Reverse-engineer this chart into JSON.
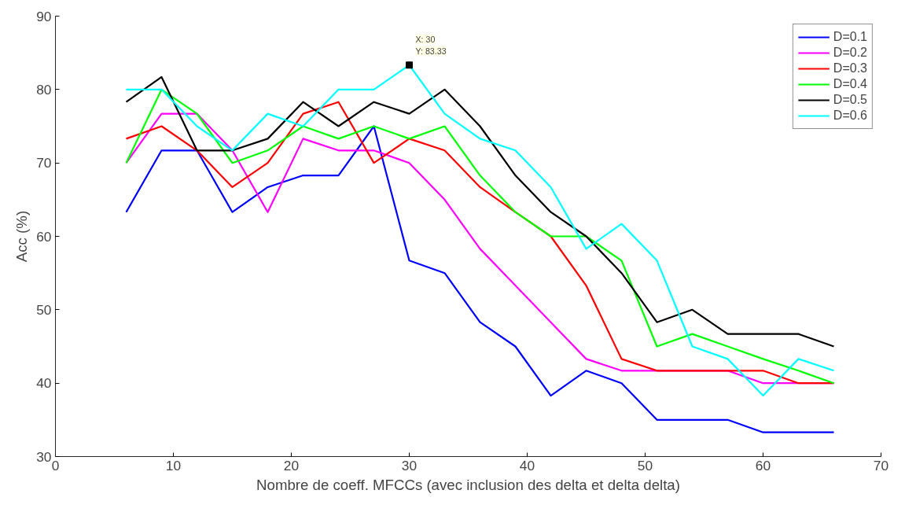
{
  "chart_data": {
    "type": "line",
    "xlabel": "Nombre de coeff. MFCCs (avec inclusion des delta et delta delta)",
    "ylabel": "Acc (%)",
    "x": [
      6,
      9,
      12,
      15,
      18,
      21,
      24,
      27,
      30,
      33,
      36,
      39,
      42,
      45,
      48,
      51,
      54,
      57,
      60,
      63,
      66
    ],
    "series": [
      {
        "name": "D=0.1",
        "color": "#0000ff",
        "values": [
          63.3,
          71.7,
          71.7,
          63.3,
          66.7,
          68.3,
          68.3,
          75,
          56.7,
          55,
          48.3,
          45,
          38.3,
          41.7,
          40,
          35,
          35,
          35,
          33.3,
          33.3,
          33.3
        ]
      },
      {
        "name": "D=0.2",
        "color": "#ff00ff",
        "values": [
          70,
          76.7,
          76.7,
          71.7,
          63.3,
          73.3,
          71.7,
          71.7,
          70,
          65,
          58.3,
          53.3,
          48.3,
          43.3,
          41.7,
          41.7,
          41.7,
          41.7,
          40,
          40,
          40
        ]
      },
      {
        "name": "D=0.3",
        "color": "#ff0000",
        "values": [
          73.3,
          75,
          71.7,
          66.7,
          70,
          76.7,
          78.3,
          70,
          73.3,
          71.7,
          66.7,
          63.3,
          60,
          53.3,
          43.3,
          41.7,
          41.7,
          41.7,
          41.7,
          40,
          40
        ]
      },
      {
        "name": "D=0.4",
        "color": "#00ff00",
        "values": [
          70,
          80,
          76.7,
          70,
          71.7,
          75,
          73.3,
          75,
          73.3,
          75,
          68.3,
          63.3,
          60,
          60,
          56.7,
          45,
          46.7,
          45,
          43.3,
          41.7,
          40
        ]
      },
      {
        "name": "D=0.5",
        "color": "#000000",
        "values": [
          78.3,
          81.7,
          71.7,
          71.7,
          73.3,
          78.3,
          75,
          78.3,
          76.7,
          80,
          75,
          68.3,
          63.3,
          60,
          55,
          48.3,
          50,
          46.7,
          46.7,
          46.7,
          45
        ]
      },
      {
        "name": "D=0.6",
        "color": "#00ffff",
        "values": [
          80,
          80,
          75,
          71.7,
          76.7,
          75,
          80,
          80,
          83.33,
          76.7,
          73.3,
          71.7,
          66.7,
          58.3,
          61.7,
          56.7,
          45,
          43.3,
          38.3,
          43.3,
          41.7
        ]
      }
    ],
    "annotations": [
      {
        "text": "X: 30\nY: 83.33",
        "x": 30,
        "y": 83.33
      }
    ],
    "xlim": [
      0,
      70
    ],
    "xticks": [
      0,
      10,
      20,
      30,
      40,
      50,
      60,
      70
    ],
    "ylim": [
      30,
      90
    ],
    "yticks": [
      30,
      40,
      50,
      60,
      70,
      80,
      90
    ],
    "legend": "top right",
    "grid": false,
    "marker": "none",
    "line_style": "solid"
  }
}
